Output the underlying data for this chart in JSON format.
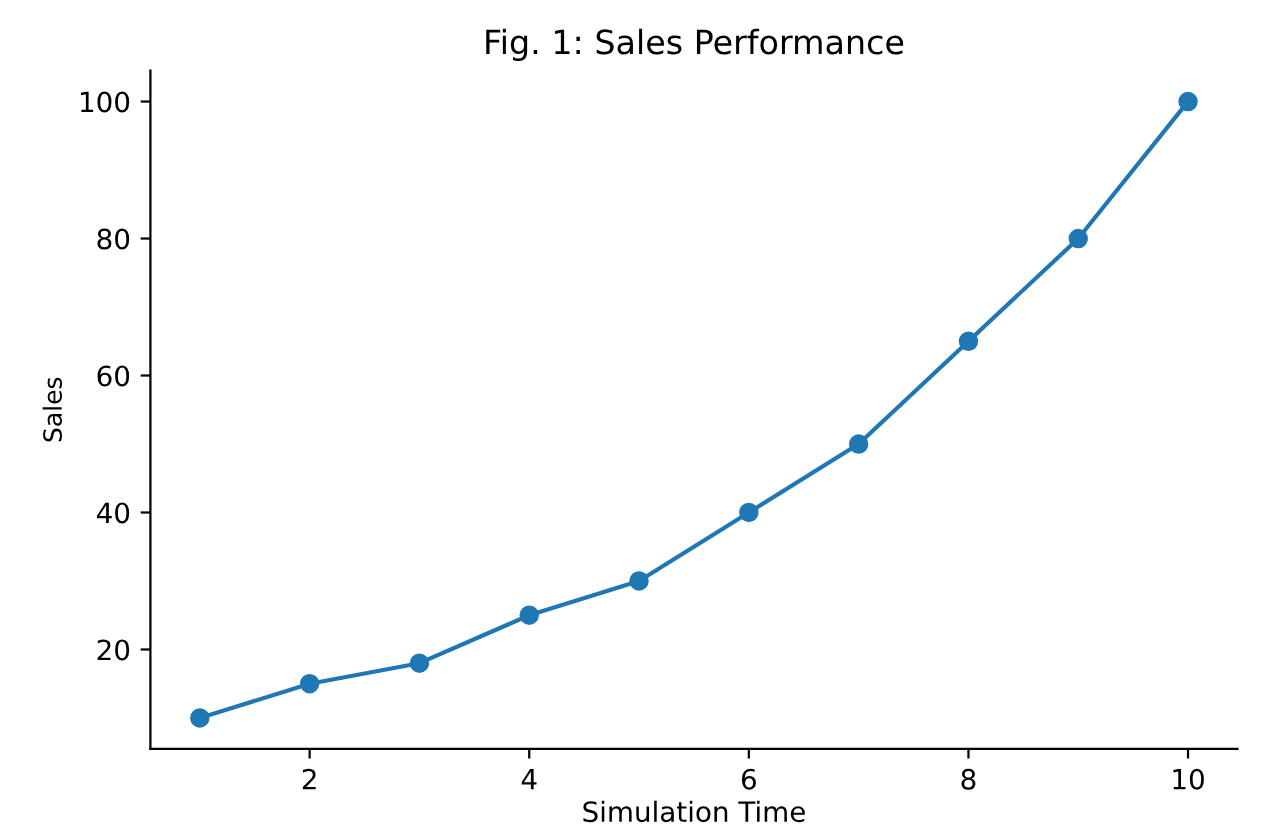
{
  "chart_data": {
    "type": "line",
    "title": "Fig. 1: Sales Performance",
    "xlabel": "Simulation Time",
    "ylabel": "Sales",
    "x": [
      1,
      2,
      3,
      4,
      5,
      6,
      7,
      8,
      9,
      10
    ],
    "series": [
      {
        "color": "#1f77b4",
        "values": [
          10,
          15,
          18,
          25,
          30,
          40,
          50,
          65,
          80,
          100
        ]
      }
    ],
    "xlim": [
      0.55,
      10.45
    ],
    "xticks": [
      2,
      4,
      6,
      8,
      10
    ],
    "ylim": [
      5.5,
      104.5
    ],
    "yticks": [
      20,
      40,
      60,
      80,
      100
    ],
    "marker": "circle",
    "line_style": "solid",
    "grid": false,
    "legend": false
  }
}
